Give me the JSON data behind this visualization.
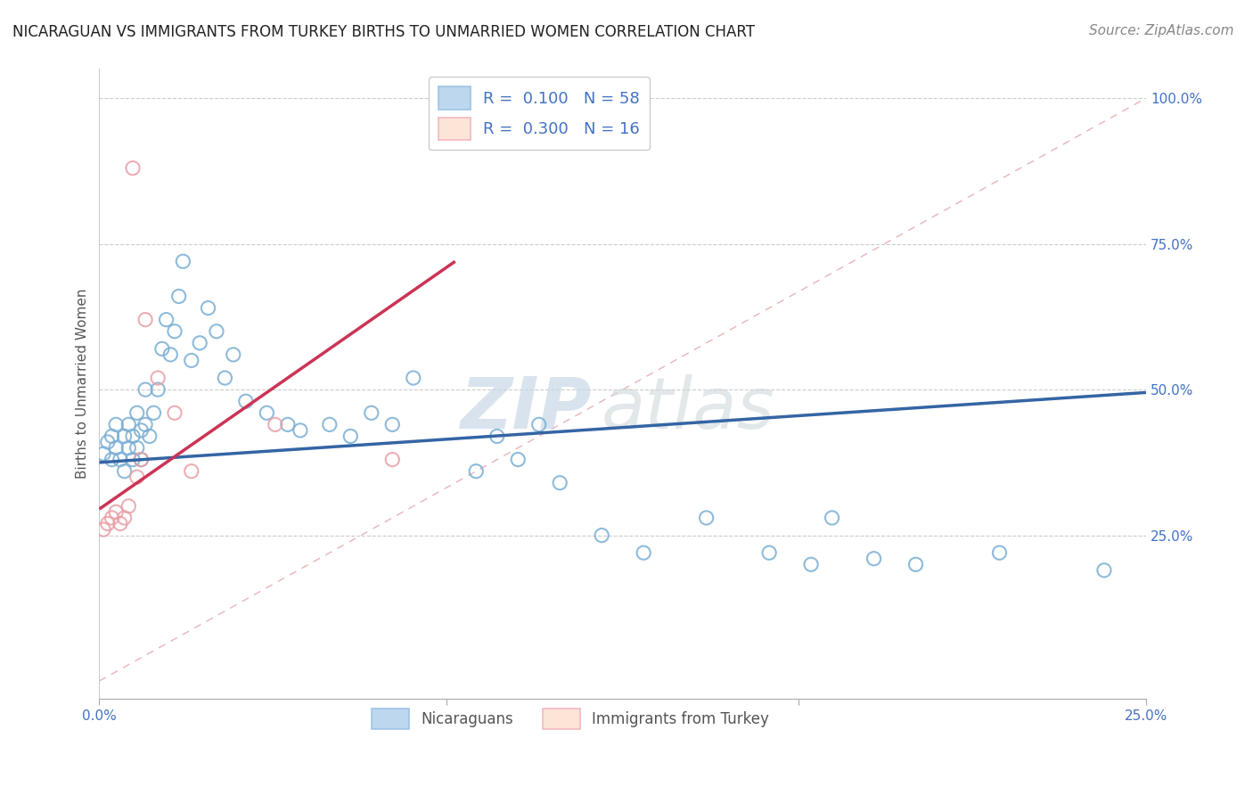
{
  "title": "NICARAGUAN VS IMMIGRANTS FROM TURKEY BIRTHS TO UNMARRIED WOMEN CORRELATION CHART",
  "source": "Source: ZipAtlas.com",
  "axis_color": "#4472C4",
  "ylabel": "Births to Unmarried Women",
  "xlim": [
    0.0,
    0.25
  ],
  "ylim": [
    -0.03,
    1.05
  ],
  "ytick_vals": [
    0.25,
    0.5,
    0.75,
    1.0
  ],
  "ytick_labels": [
    "25.0%",
    "50.0%",
    "75.0%",
    "100.0%"
  ],
  "xtick_vals": [
    0.0,
    0.083,
    0.167,
    0.25
  ],
  "xtick_labels": [
    "0.0%",
    "",
    "",
    "25.0%"
  ],
  "blue_fill": "none",
  "blue_edge": "#7BAFD4",
  "pink_fill": "none",
  "pink_edge": "#E8A0A8",
  "blue_line_color": "#3465A4",
  "pink_line_color": "#CC3355",
  "diag_color": "#E8B4B8",
  "legend_label_blue": "Nicaraguans",
  "legend_label_pink": "Immigrants from Turkey",
  "blue_scatter_x": [
    0.001,
    0.002,
    0.003,
    0.003,
    0.004,
    0.004,
    0.005,
    0.006,
    0.006,
    0.007,
    0.007,
    0.008,
    0.008,
    0.009,
    0.009,
    0.01,
    0.01,
    0.011,
    0.011,
    0.012,
    0.013,
    0.014,
    0.015,
    0.016,
    0.017,
    0.018,
    0.019,
    0.02,
    0.022,
    0.024,
    0.026,
    0.028,
    0.03,
    0.032,
    0.035,
    0.04,
    0.045,
    0.048,
    0.055,
    0.06,
    0.065,
    0.07,
    0.075,
    0.09,
    0.095,
    0.1,
    0.105,
    0.11,
    0.12,
    0.13,
    0.145,
    0.16,
    0.17,
    0.175,
    0.185,
    0.195,
    0.215,
    0.24
  ],
  "blue_scatter_y": [
    0.39,
    0.41,
    0.38,
    0.42,
    0.4,
    0.44,
    0.38,
    0.42,
    0.36,
    0.4,
    0.44,
    0.38,
    0.42,
    0.46,
    0.4,
    0.38,
    0.43,
    0.5,
    0.44,
    0.42,
    0.46,
    0.5,
    0.57,
    0.62,
    0.56,
    0.6,
    0.66,
    0.72,
    0.55,
    0.58,
    0.64,
    0.6,
    0.52,
    0.56,
    0.48,
    0.46,
    0.44,
    0.43,
    0.44,
    0.42,
    0.46,
    0.44,
    0.52,
    0.36,
    0.42,
    0.38,
    0.44,
    0.34,
    0.25,
    0.22,
    0.28,
    0.22,
    0.2,
    0.28,
    0.21,
    0.2,
    0.22,
    0.19
  ],
  "pink_scatter_x": [
    0.001,
    0.002,
    0.003,
    0.004,
    0.005,
    0.006,
    0.007,
    0.008,
    0.009,
    0.01,
    0.011,
    0.014,
    0.018,
    0.022,
    0.042,
    0.07
  ],
  "pink_scatter_y": [
    0.26,
    0.27,
    0.28,
    0.29,
    0.27,
    0.28,
    0.3,
    0.88,
    0.35,
    0.38,
    0.62,
    0.52,
    0.46,
    0.36,
    0.44,
    0.38
  ],
  "blue_line_x": [
    0.0,
    0.25
  ],
  "blue_line_y": [
    0.375,
    0.495
  ],
  "pink_line_x": [
    0.0,
    0.085
  ],
  "pink_line_y": [
    0.295,
    0.72
  ],
  "watermark_zip": "ZIP",
  "watermark_atlas": "atlas",
  "title_fontsize": 12,
  "axis_label_fontsize": 11,
  "tick_fontsize": 11,
  "source_fontsize": 11,
  "marker_size": 120,
  "marker_lw": 1.5
}
